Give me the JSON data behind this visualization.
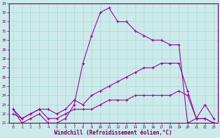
{
  "xlabel": "Windchill (Refroidissement éolien,°C)",
  "xlim": [
    -0.5,
    23.5
  ],
  "ylim": [
    21,
    34
  ],
  "xticks": [
    0,
    1,
    2,
    3,
    4,
    5,
    6,
    7,
    8,
    9,
    10,
    11,
    12,
    13,
    14,
    15,
    16,
    17,
    18,
    19,
    20,
    21,
    22,
    23
  ],
  "yticks": [
    21,
    22,
    23,
    24,
    25,
    26,
    27,
    28,
    29,
    30,
    31,
    32,
    33,
    34
  ],
  "bg_color": "#cdeaea",
  "line_color": "#990099",
  "grid_color": "#a8d8d8",
  "line1_x": [
    0,
    1,
    2,
    3,
    4,
    5,
    6,
    7,
    8,
    9,
    10,
    11,
    12,
    13,
    14,
    15,
    16,
    17,
    18,
    19,
    20,
    21,
    22,
    23
  ],
  "line1_y": [
    22.5,
    21.0,
    21.5,
    22.0,
    21.0,
    21.0,
    21.5,
    23.0,
    27.5,
    30.5,
    33.0,
    33.5,
    32.0,
    32.0,
    31.0,
    30.5,
    30.0,
    30.0,
    29.5,
    29.5,
    21.0,
    21.5,
    21.5,
    21.0
  ],
  "line2_x": [
    0,
    1,
    2,
    3,
    4,
    5,
    6,
    7,
    8,
    9,
    10,
    11,
    12,
    13,
    14,
    15,
    16,
    17,
    18,
    19,
    20,
    21,
    22,
    23
  ],
  "line2_y": [
    22.5,
    21.5,
    22.0,
    22.5,
    22.5,
    22.0,
    22.5,
    23.5,
    23.0,
    24.0,
    24.5,
    25.0,
    25.5,
    26.0,
    26.5,
    27.0,
    27.0,
    27.5,
    27.5,
    27.5,
    24.5,
    21.5,
    23.0,
    21.5
  ],
  "line3_x": [
    0,
    1,
    2,
    3,
    4,
    5,
    6,
    7,
    8,
    9,
    10,
    11,
    12,
    13,
    14,
    15,
    16,
    17,
    18,
    19,
    20,
    21,
    22,
    23
  ],
  "line3_y": [
    22.0,
    21.5,
    22.0,
    22.5,
    21.5,
    21.5,
    22.0,
    22.5,
    22.5,
    22.5,
    23.0,
    23.5,
    23.5,
    23.5,
    24.0,
    24.0,
    24.0,
    24.0,
    24.0,
    24.5,
    24.0,
    21.5,
    21.5,
    21.0
  ]
}
